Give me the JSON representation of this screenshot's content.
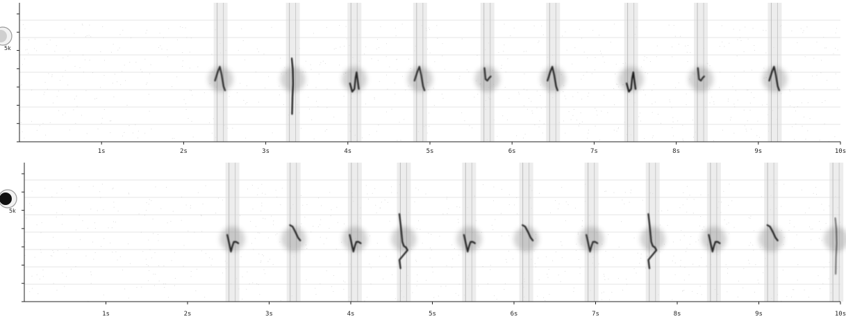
{
  "chart_data": [
    {
      "type": "spectrogram",
      "title": "",
      "xlabel": "",
      "ylabel": "",
      "xlim": [
        0,
        10
      ],
      "x_unit": "s",
      "x_ticks": [
        "1s",
        "2s",
        "3s",
        "4s",
        "5s",
        "6s",
        "7s",
        "8s",
        "9s",
        "10s"
      ],
      "y_tick_labels": [
        "5k"
      ],
      "grid": true,
      "colormap": "grayscale",
      "calls": [
        {
          "t": 2.45,
          "shape": "peak",
          "intensity": 0.8
        },
        {
          "t": 3.33,
          "shape": "vertical",
          "intensity": 0.9
        },
        {
          "t": 4.08,
          "shape": "hook",
          "intensity": 0.85
        },
        {
          "t": 4.88,
          "shape": "peak",
          "intensity": 0.8
        },
        {
          "t": 5.7,
          "shape": "flat",
          "intensity": 0.8
        },
        {
          "t": 6.5,
          "shape": "peak",
          "intensity": 0.85
        },
        {
          "t": 7.45,
          "shape": "hook",
          "intensity": 0.9
        },
        {
          "t": 8.3,
          "shape": "flat",
          "intensity": 0.8
        },
        {
          "t": 9.2,
          "shape": "peak",
          "intensity": 0.85
        }
      ]
    },
    {
      "type": "spectrogram",
      "title": "",
      "xlabel": "",
      "ylabel": "",
      "xlim": [
        0,
        10
      ],
      "x_unit": "s",
      "x_ticks": [
        "1s",
        "2s",
        "3s",
        "4s",
        "5s",
        "6s",
        "7s",
        "8s",
        "9s",
        "10s"
      ],
      "y_tick_labels": [
        "5k"
      ],
      "grid": true,
      "colormap": "grayscale",
      "calls": [
        {
          "t": 2.55,
          "shape": "dip",
          "intensity": 0.85
        },
        {
          "t": 3.3,
          "shape": "descend",
          "intensity": 0.85
        },
        {
          "t": 4.05,
          "shape": "dip",
          "intensity": 0.85
        },
        {
          "t": 4.65,
          "shape": "drop",
          "intensity": 0.85
        },
        {
          "t": 5.45,
          "shape": "dip",
          "intensity": 0.85
        },
        {
          "t": 6.15,
          "shape": "descend",
          "intensity": 0.85
        },
        {
          "t": 6.95,
          "shape": "dip",
          "intensity": 0.8
        },
        {
          "t": 7.7,
          "shape": "drop",
          "intensity": 0.85
        },
        {
          "t": 8.45,
          "shape": "dip",
          "intensity": 0.85
        },
        {
          "t": 9.15,
          "shape": "descend",
          "intensity": 0.85
        },
        {
          "t": 9.95,
          "shape": "vertical",
          "intensity": 0.5
        }
      ]
    }
  ]
}
